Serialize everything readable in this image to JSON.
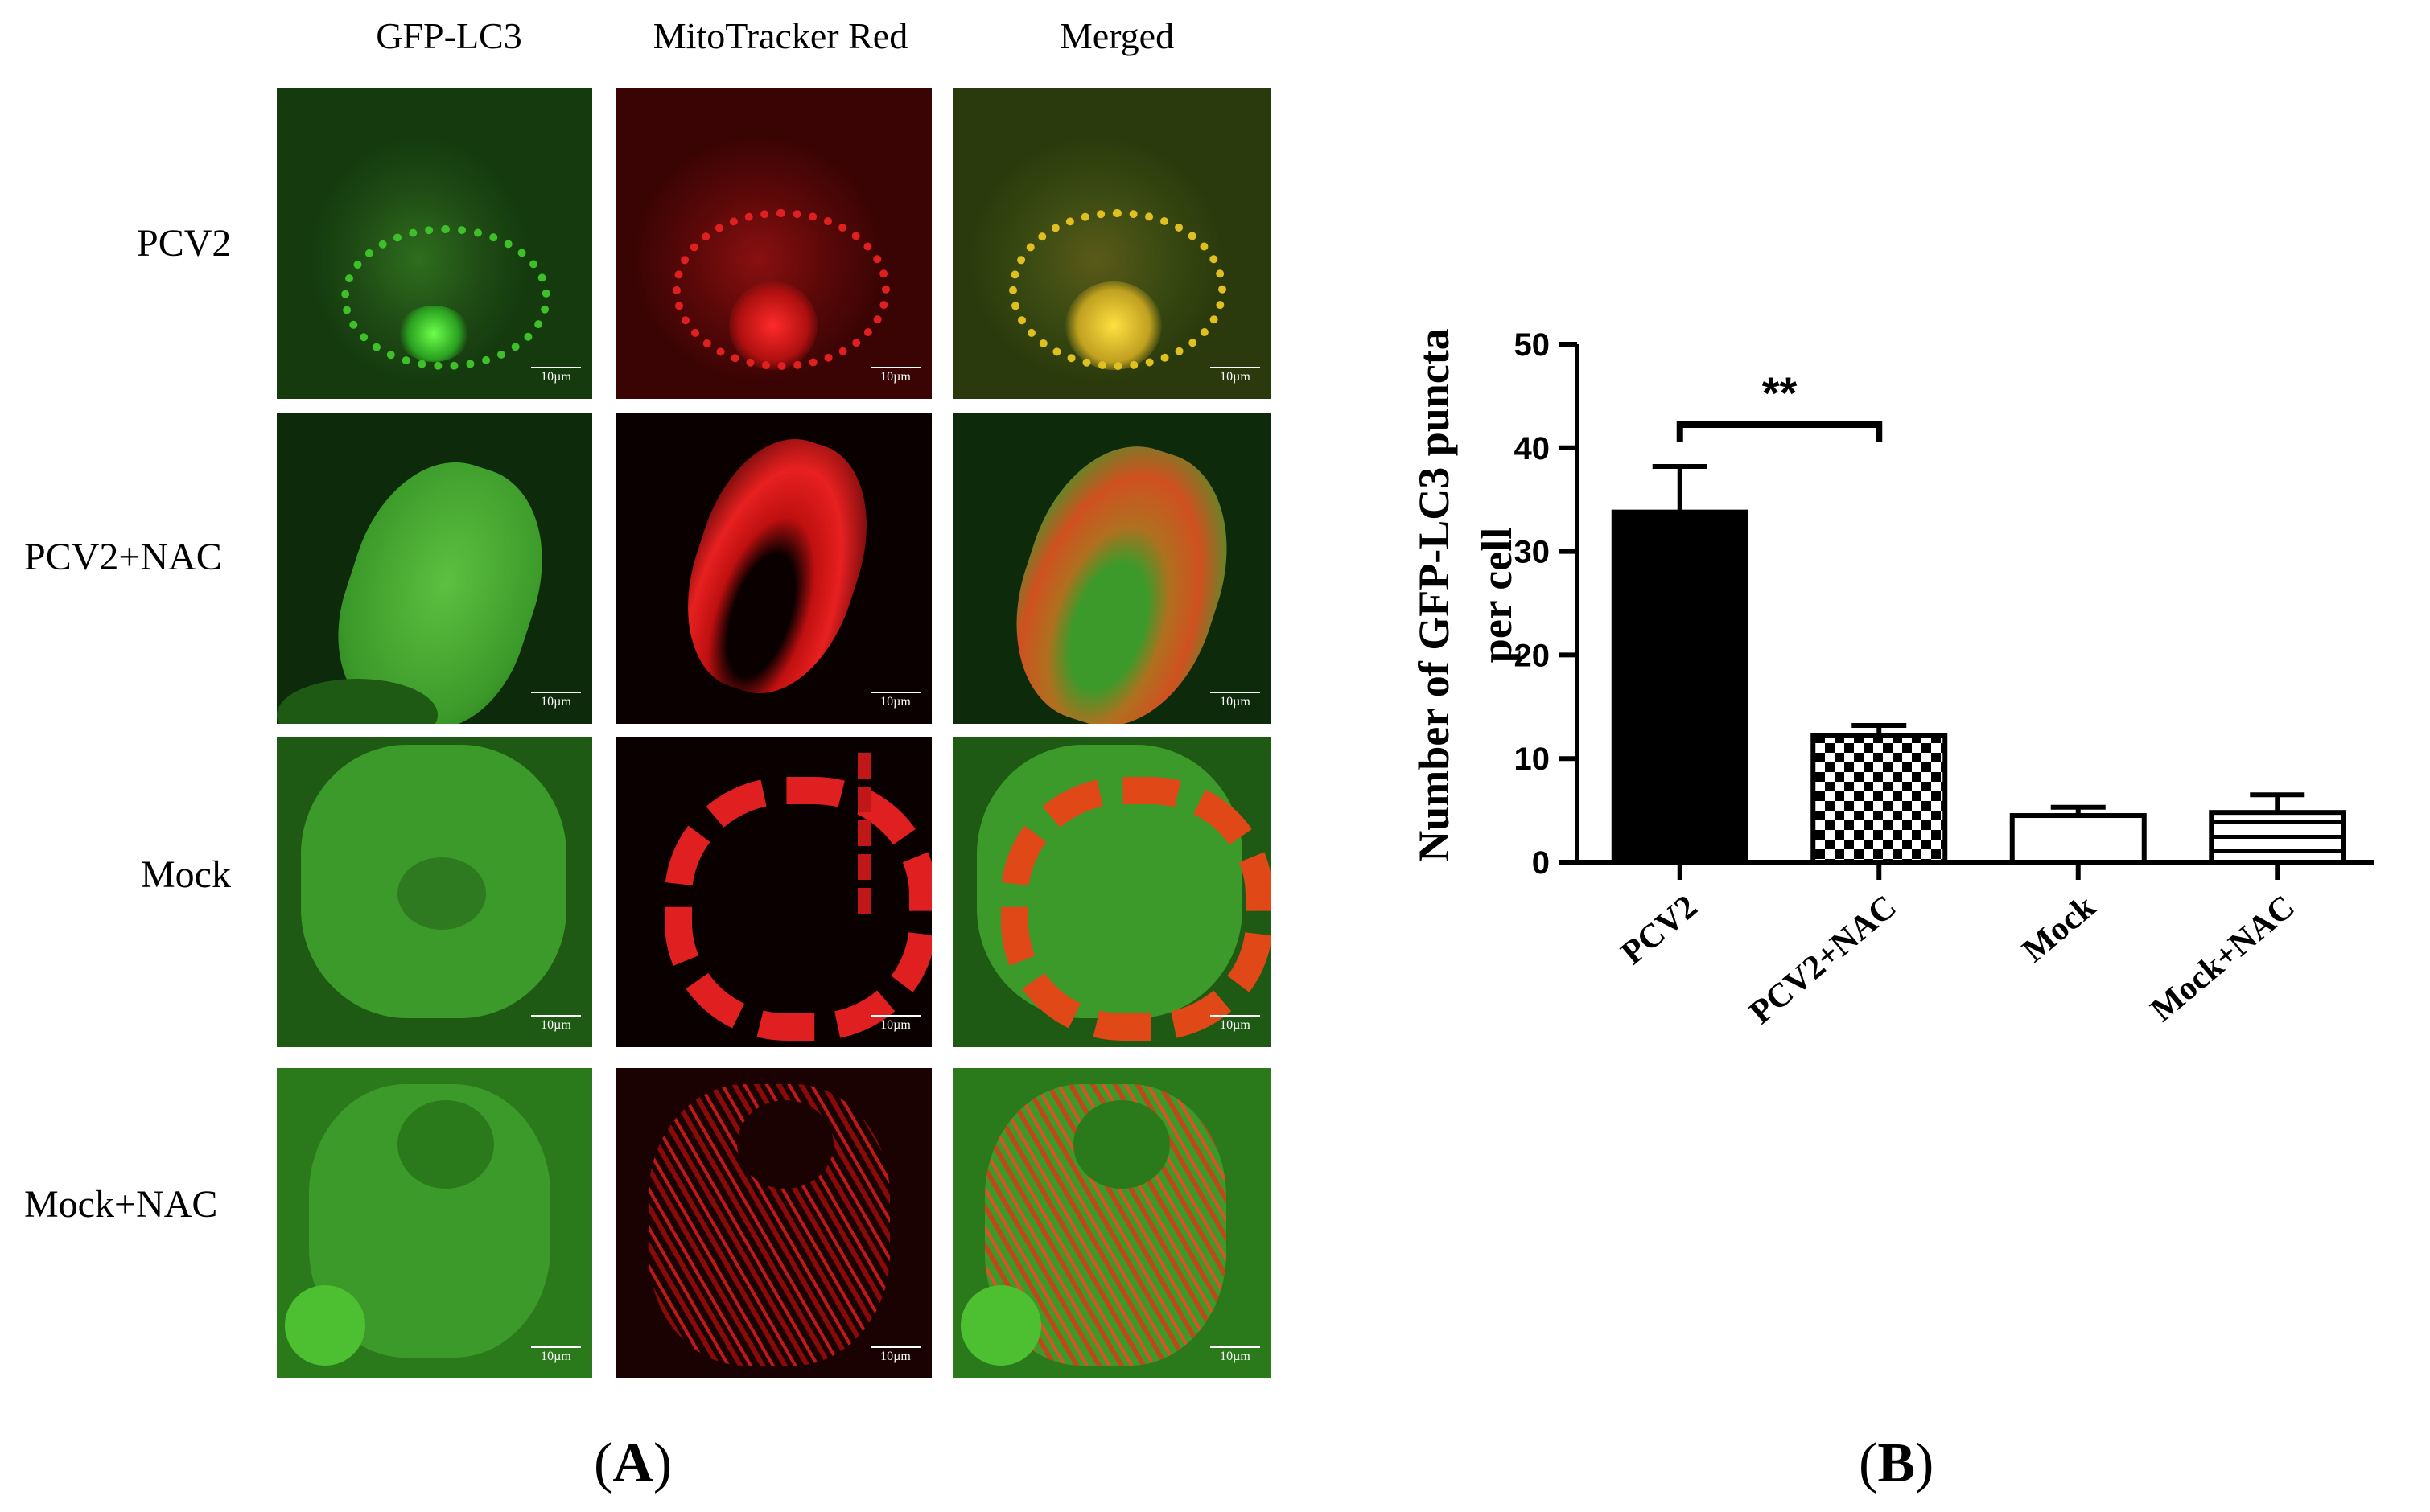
{
  "panel_a": {
    "column_headers": [
      "GFP-LC3",
      "MitoTracker Red",
      "Merged"
    ],
    "row_labels": [
      "PCV2",
      "PCV2+NAC",
      "Mock",
      "Mock+NAC"
    ],
    "scale_bar_label": "10µm",
    "label": "A"
  },
  "panel_b": {
    "label": "B"
  },
  "chart_data": {
    "type": "bar",
    "categories": [
      "PCV2",
      "PCV2+NAC",
      "Mock",
      "Mock+NAC"
    ],
    "values": [
      33.8,
      12.2,
      4.5,
      4.8
    ],
    "errors": [
      4.4,
      1.0,
      0.8,
      1.7
    ],
    "fills": [
      "solid-black",
      "checkerboard",
      "white",
      "horizontal-stripes"
    ],
    "ylabel": "Number of GFP-LC3 puncta per cell",
    "ylabel_lines": [
      "Number of GFP-LC3 puncta",
      "per cell"
    ],
    "xlabel": "",
    "ylim": [
      0,
      50
    ],
    "yticks": [
      0,
      10,
      20,
      30,
      40,
      50
    ],
    "significance": {
      "from": "PCV2",
      "to": "PCV2+NAC",
      "label": "**"
    },
    "grid": false
  }
}
